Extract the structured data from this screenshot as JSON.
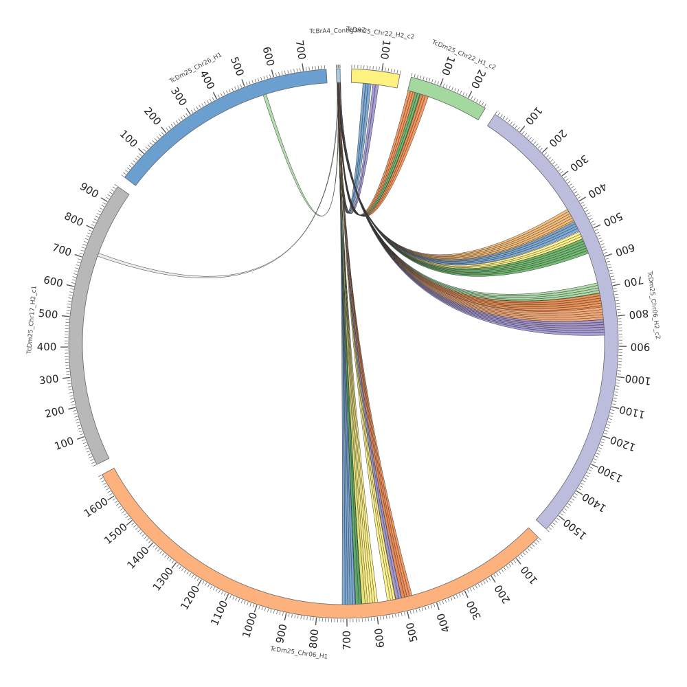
{
  "chart_data": {
    "type": "chord",
    "title": "",
    "segments": [
      {
        "id": "contig",
        "label": "TcBrA4_Contig397",
        "length": 8,
        "color": "#a9cbe3",
        "tick_step": 100,
        "labels_shown": false
      },
      {
        "id": "chr22h2",
        "label": "TcDm25_Chr22_H2_c2",
        "length": 160,
        "color": "#fff17f",
        "tick_step": 100,
        "labels_shown": true
      },
      {
        "id": "chr22h1",
        "label": "TcDm25_Chr22_H1_c2",
        "length": 265,
        "color": "#a3d89e",
        "tick_step": 100,
        "labels_shown": true
      },
      {
        "id": "chr06h2",
        "label": "TcDm25_Chr06_H2_c2",
        "length": 1560,
        "color": "#bcbcdd",
        "tick_step": 100,
        "labels_shown": true
      },
      {
        "id": "chr06h1",
        "label": "TcDm25_Chr06_H1",
        "length": 1680,
        "color": "#fdb27d",
        "tick_step": 100,
        "labels_shown": true
      },
      {
        "id": "chr17h2",
        "label": "TcDm25_Chr17_H2_c1",
        "length": 960,
        "color": "#b8b8b8",
        "tick_step": 100,
        "labels_shown": true
      },
      {
        "id": "chr26h1",
        "label": "TcDm25_Chr26_H1",
        "length": 775,
        "color": "#6b9fd0",
        "tick_step": 100,
        "labels_shown": true
      }
    ],
    "links": [
      {
        "from": {
          "seg": "chr26h1",
          "pos": 555
        },
        "to": {
          "seg": "contig",
          "pos": 3
        },
        "color": "#a3d89e",
        "count": 1
      },
      {
        "from": {
          "seg": "chr17h2",
          "pos": 725
        },
        "to": {
          "seg": "contig",
          "pos": 2
        },
        "color": "#e8e8e8",
        "count": 1
      },
      {
        "from": {
          "seg": "chr22h2",
          "pos": 55
        },
        "to": {
          "seg": "contig",
          "pos": 4
        },
        "color": "#6b9fd0",
        "count": 3
      },
      {
        "from": {
          "seg": "chr22h2",
          "pos": 85
        },
        "to": {
          "seg": "contig",
          "pos": 4
        },
        "color": "#9b8fd0",
        "count": 2
      },
      {
        "from": {
          "seg": "chr22h1",
          "pos": 15
        },
        "to": {
          "seg": "contig",
          "pos": 5
        },
        "color": "#f58a4a",
        "count": 3
      },
      {
        "from": {
          "seg": "chr22h1",
          "pos": 40
        },
        "to": {
          "seg": "contig",
          "pos": 5
        },
        "color": "#5fb05f",
        "count": 3
      },
      {
        "from": {
          "seg": "chr22h1",
          "pos": 60
        },
        "to": {
          "seg": "contig",
          "pos": 5
        },
        "color": "#f58a4a",
        "count": 3
      },
      {
        "from": {
          "seg": "chr06h2",
          "pos": 430
        },
        "to": {
          "seg": "contig",
          "pos": 5
        },
        "color": "#f5b56a",
        "count": 6
      },
      {
        "from": {
          "seg": "chr06h2",
          "pos": 470
        },
        "to": {
          "seg": "contig",
          "pos": 5
        },
        "color": "#6b9fd0",
        "count": 4
      },
      {
        "from": {
          "seg": "chr06h2",
          "pos": 510
        },
        "to": {
          "seg": "contig",
          "pos": 5
        },
        "color": "#fff17f",
        "count": 4
      },
      {
        "from": {
          "seg": "chr06h2",
          "pos": 545
        },
        "to": {
          "seg": "contig",
          "pos": 5
        },
        "color": "#5fb05f",
        "count": 6
      },
      {
        "from": {
          "seg": "chr06h2",
          "pos": 715
        },
        "to": {
          "seg": "contig",
          "pos": 6
        },
        "color": "#a3d89e",
        "count": 8
      },
      {
        "from": {
          "seg": "chr06h2",
          "pos": 760
        },
        "to": {
          "seg": "contig",
          "pos": 6
        },
        "color": "#f58a4a",
        "count": 10
      },
      {
        "from": {
          "seg": "chr06h2",
          "pos": 800
        },
        "to": {
          "seg": "contig",
          "pos": 6
        },
        "color": "#fdb27d",
        "count": 8
      },
      {
        "from": {
          "seg": "chr06h2",
          "pos": 835
        },
        "to": {
          "seg": "contig",
          "pos": 6
        },
        "color": "#9b8fd0",
        "count": 6
      },
      {
        "from": {
          "seg": "chr06h1",
          "pos": 680
        },
        "to": {
          "seg": "contig",
          "pos": 3
        },
        "color": "#6b9fd0",
        "count": 8
      },
      {
        "from": {
          "seg": "chr06h1",
          "pos": 650
        },
        "to": {
          "seg": "contig",
          "pos": 3
        },
        "color": "#5fb05f",
        "count": 4
      },
      {
        "from": {
          "seg": "chr06h1",
          "pos": 620
        },
        "to": {
          "seg": "contig",
          "pos": 3
        },
        "color": "#fff17f",
        "count": 6
      },
      {
        "from": {
          "seg": "chr06h1",
          "pos": 540
        },
        "to": {
          "seg": "contig",
          "pos": 4
        },
        "color": "#fff17f",
        "count": 4
      },
      {
        "from": {
          "seg": "chr06h1",
          "pos": 510
        },
        "to": {
          "seg": "contig",
          "pos": 4
        },
        "color": "#9b8fd0",
        "count": 4
      },
      {
        "from": {
          "seg": "chr06h1",
          "pos": 490
        },
        "to": {
          "seg": "contig",
          "pos": 4
        },
        "color": "#f58a4a",
        "count": 4
      }
    ]
  }
}
